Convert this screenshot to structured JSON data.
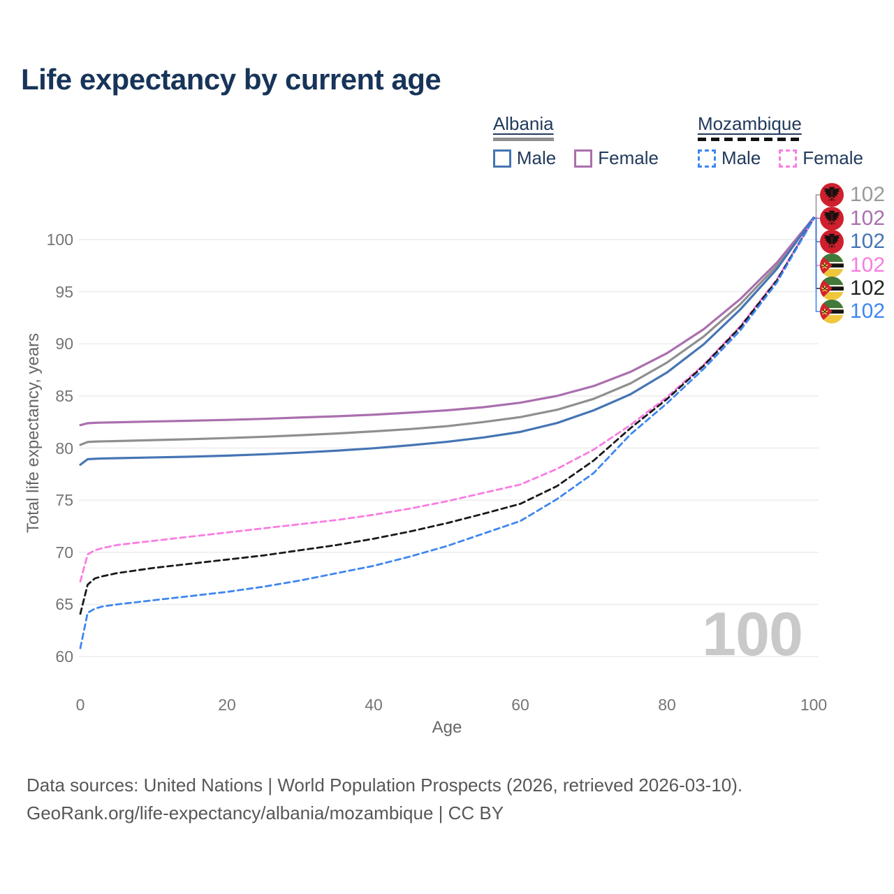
{
  "title": "Life expectancy by current age",
  "watermark": "100",
  "legend": {
    "groups": [
      {
        "country": "Albania",
        "line_style": "solid",
        "line_color": "#8f8f8f",
        "items": [
          {
            "label": "Male",
            "color": "#4575b4",
            "dash": false
          },
          {
            "label": "Female",
            "color": "#aa6fae",
            "dash": false
          }
        ]
      },
      {
        "country": "Mozambique",
        "line_style": "dashed",
        "line_color": "#111111",
        "items": [
          {
            "label": "Male",
            "color": "#3f86f0",
            "dash": true
          },
          {
            "label": "Female",
            "color": "#f97ce1",
            "dash": true
          }
        ]
      }
    ]
  },
  "chart_data": {
    "type": "line",
    "title": "Life expectancy by current age",
    "xlabel": "Age",
    "ylabel": "Total life expectancy, years",
    "xlim": [
      0,
      100
    ],
    "ylim": [
      60,
      102.5
    ],
    "x_ticks": [
      0,
      20,
      40,
      60,
      80,
      100
    ],
    "y_ticks": [
      60,
      65,
      70,
      75,
      80,
      85,
      90,
      95,
      100
    ],
    "grid": "horizontal-only",
    "legend_position": "top-right",
    "x": [
      0,
      1,
      2,
      3,
      5,
      10,
      15,
      20,
      25,
      30,
      35,
      40,
      45,
      50,
      55,
      60,
      65,
      70,
      75,
      80,
      85,
      90,
      95,
      100
    ],
    "series": [
      {
        "id": "albania-all",
        "name": "Albania (both sexes)",
        "color": "#8f8f8f",
        "dash": false,
        "end_label": "102",
        "values": [
          80.3,
          80.58,
          80.62,
          80.64,
          80.67,
          80.76,
          80.85,
          80.96,
          81.08,
          81.23,
          81.4,
          81.6,
          81.82,
          82.1,
          82.5,
          82.97,
          83.67,
          84.72,
          86.2,
          88.2,
          90.7,
          93.8,
          97.5,
          102.1
        ]
      },
      {
        "id": "albania-female",
        "name": "Albania Female",
        "color": "#aa6fae",
        "dash": false,
        "end_label": "102",
        "values": [
          82.2,
          82.38,
          82.42,
          82.44,
          82.47,
          82.55,
          82.62,
          82.7,
          82.8,
          82.93,
          83.05,
          83.2,
          83.4,
          83.62,
          83.92,
          84.35,
          85.0,
          85.95,
          87.3,
          89.1,
          91.4,
          94.3,
          97.8,
          102.1
        ]
      },
      {
        "id": "albania-male",
        "name": "Albania Male",
        "color": "#4575b4",
        "dash": false,
        "end_label": "102",
        "values": [
          78.4,
          78.93,
          78.97,
          79.0,
          79.03,
          79.1,
          79.17,
          79.27,
          79.4,
          79.56,
          79.75,
          79.98,
          80.27,
          80.6,
          81.02,
          81.55,
          82.4,
          83.62,
          85.15,
          87.25,
          89.95,
          93.3,
          97.2,
          102.1
        ]
      },
      {
        "id": "mozambique-female",
        "name": "Mozambique Female",
        "color": "#f97ce1",
        "dash": true,
        "end_label": "102",
        "values": [
          67.2,
          69.8,
          70.2,
          70.4,
          70.7,
          71.1,
          71.5,
          71.9,
          72.3,
          72.7,
          73.1,
          73.6,
          74.2,
          74.9,
          75.7,
          76.5,
          78.0,
          79.85,
          82.2,
          84.9,
          88.0,
          91.7,
          96.2,
          102.0
        ]
      },
      {
        "id": "mozambique-all",
        "name": "Mozambique (both sexes)",
        "color": "#1a1a1a",
        "dash": true,
        "end_label": "102",
        "values": [
          64.1,
          66.9,
          67.5,
          67.7,
          68.0,
          68.5,
          68.9,
          69.3,
          69.7,
          70.2,
          70.7,
          71.3,
          72.0,
          72.8,
          73.7,
          74.65,
          76.35,
          78.8,
          81.9,
          84.7,
          87.9,
          91.6,
          96.1,
          102.0
        ]
      },
      {
        "id": "mozambique-male",
        "name": "Mozambique Male",
        "color": "#3f86f0",
        "dash": true,
        "end_label": "102",
        "values": [
          60.8,
          64.2,
          64.6,
          64.8,
          65.0,
          65.4,
          65.8,
          66.2,
          66.7,
          67.3,
          68.0,
          68.7,
          69.6,
          70.6,
          71.8,
          73.0,
          75.1,
          77.6,
          81.3,
          84.3,
          87.6,
          91.3,
          95.9,
          102.0
        ]
      }
    ]
  },
  "end_labels": [
    {
      "series": "albania-all",
      "flag": "albania",
      "value": "102",
      "color": "#9a9a9a"
    },
    {
      "series": "albania-female",
      "flag": "albania",
      "value": "102",
      "color": "#aa6fae"
    },
    {
      "series": "albania-male",
      "flag": "albania",
      "value": "102",
      "color": "#4575b4"
    },
    {
      "series": "mozambique-female",
      "flag": "mozambique",
      "value": "102",
      "color": "#f97ce1"
    },
    {
      "series": "mozambique-all",
      "flag": "mozambique",
      "value": "102",
      "color": "#222222"
    },
    {
      "series": "mozambique-male",
      "flag": "mozambique",
      "value": "102",
      "color": "#3f86f0"
    }
  ],
  "footer": {
    "line1": "Data sources: United Nations | World Population Prospects (2026, retrieved 2026-03-10).",
    "line2": "GeoRank.org/life-expectancy/albania/mozambique | CC BY"
  }
}
